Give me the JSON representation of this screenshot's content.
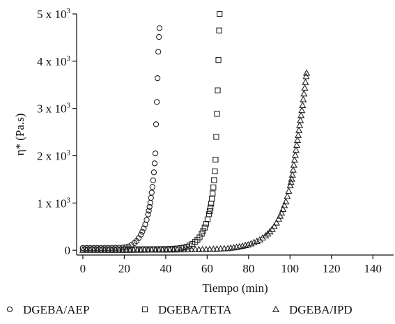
{
  "chart_data": {
    "type": "scatter",
    "xlabel": "Tiempo (min)",
    "ylabel": "η* (Pa.s)",
    "xlim": [
      -3,
      150
    ],
    "ylim": [
      -100,
      5000
    ],
    "x_ticks": [
      0,
      20,
      40,
      60,
      80,
      100,
      120,
      140
    ],
    "x_tick_labels": [
      "0",
      "20",
      "40",
      "60",
      "80",
      "100",
      "120",
      "140"
    ],
    "y_ticks": [
      0,
      1000,
      2000,
      3000,
      4000,
      5000
    ],
    "y_tick_labels": [
      {
        "mantissa": "0",
        "exp": ""
      },
      {
        "mantissa": "1 x 10",
        "exp": "3"
      },
      {
        "mantissa": "2 x 10",
        "exp": "3"
      },
      {
        "mantissa": "3 x 10",
        "exp": "3"
      },
      {
        "mantissa": "4 x 10",
        "exp": "3"
      },
      {
        "mantissa": "5 x 10",
        "exp": "3"
      }
    ],
    "legend_position": "bottom",
    "series": [
      {
        "name": "DGEBA/AEP",
        "marker": "circle",
        "x": [
          0,
          5,
          10,
          15,
          18,
          20,
          22,
          24,
          26,
          27,
          28,
          29,
          30,
          31,
          31.5,
          32,
          32.5,
          33,
          33.5,
          34,
          34.5,
          35,
          35.3,
          35.6,
          36,
          36.3,
          36.6,
          37
        ],
        "y": [
          50,
          50,
          50,
          52,
          55,
          60,
          80,
          120,
          200,
          260,
          330,
          420,
          530,
          670,
          760,
          870,
          990,
          1140,
          1300,
          1500,
          1750,
          2050,
          2600,
          3000,
          3550,
          4100,
          4400,
          4700
        ]
      },
      {
        "name": "DGEBA/TETA",
        "marker": "square",
        "x": [
          0,
          10,
          20,
          30,
          40,
          45,
          48,
          50,
          52,
          54,
          56,
          57,
          58,
          59,
          60,
          61,
          61.5,
          62,
          62.5,
          63,
          63.5,
          64,
          64.3,
          64.6,
          65,
          65.3,
          65.6,
          66
        ],
        "y": [
          20,
          20,
          20,
          22,
          25,
          35,
          50,
          70,
          110,
          170,
          250,
          320,
          400,
          500,
          620,
          780,
          880,
          1000,
          1150,
          1330,
          1550,
          1850,
          2250,
          2700,
          3200,
          3750,
          4300,
          5000
        ]
      },
      {
        "name": "DGEBA/IPD",
        "marker": "triangle",
        "x": [
          0,
          20,
          40,
          60,
          70,
          75,
          80,
          85,
          88,
          90,
          92,
          94,
          96,
          98,
          100,
          101,
          102,
          103,
          104,
          105,
          106,
          107,
          108
        ],
        "y": [
          5,
          5,
          10,
          20,
          40,
          70,
          120,
          210,
          300,
          380,
          480,
          620,
          800,
          1030,
          1350,
          1550,
          1850,
          2150,
          2450,
          2750,
          3050,
          3400,
          3750
        ]
      }
    ]
  }
}
